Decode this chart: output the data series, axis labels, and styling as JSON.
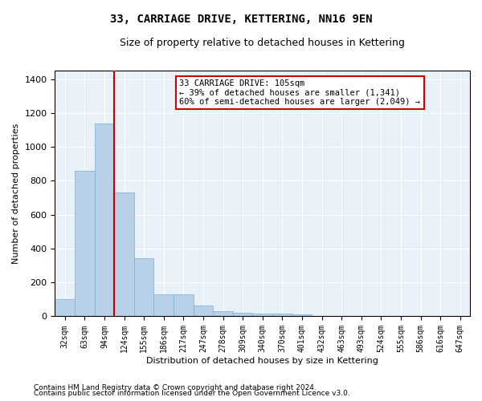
{
  "title": "33, CARRIAGE DRIVE, KETTERING, NN16 9EN",
  "subtitle": "Size of property relative to detached houses in Kettering",
  "xlabel": "Distribution of detached houses by size in Kettering",
  "ylabel": "Number of detached properties",
  "bar_color": "#b8d0e8",
  "bar_edge_color": "#7aafd4",
  "background_color": "#e8f0f8",
  "grid_color": "#ffffff",
  "fig_background": "#ffffff",
  "categories": [
    "32sqm",
    "63sqm",
    "94sqm",
    "124sqm",
    "155sqm",
    "186sqm",
    "217sqm",
    "247sqm",
    "278sqm",
    "309sqm",
    "340sqm",
    "370sqm",
    "401sqm",
    "432sqm",
    "463sqm",
    "493sqm",
    "524sqm",
    "555sqm",
    "586sqm",
    "616sqm",
    "647sqm"
  ],
  "values": [
    100,
    860,
    1140,
    730,
    345,
    130,
    130,
    62,
    30,
    20,
    15,
    15,
    12,
    0,
    0,
    0,
    0,
    0,
    0,
    0,
    0
  ],
  "ylim": [
    0,
    1450
  ],
  "yticks": [
    0,
    200,
    400,
    600,
    800,
    1000,
    1200,
    1400
  ],
  "property_line_x": 2.5,
  "annotation_text": "33 CARRIAGE DRIVE: 105sqm\n← 39% of detached houses are smaller (1,341)\n60% of semi-detached houses are larger (2,049) →",
  "annotation_box_color": "#ffffff",
  "annotation_box_edge_color": "#cc0000",
  "red_line_color": "#cc0000",
  "footnote1": "Contains HM Land Registry data © Crown copyright and database right 2024.",
  "footnote2": "Contains public sector information licensed under the Open Government Licence v3.0.",
  "title_fontsize": 10,
  "subtitle_fontsize": 9,
  "ylabel_fontsize": 8,
  "xlabel_fontsize": 8,
  "tick_fontsize": 7,
  "annot_fontsize": 7.5,
  "footnote_fontsize": 6.5
}
